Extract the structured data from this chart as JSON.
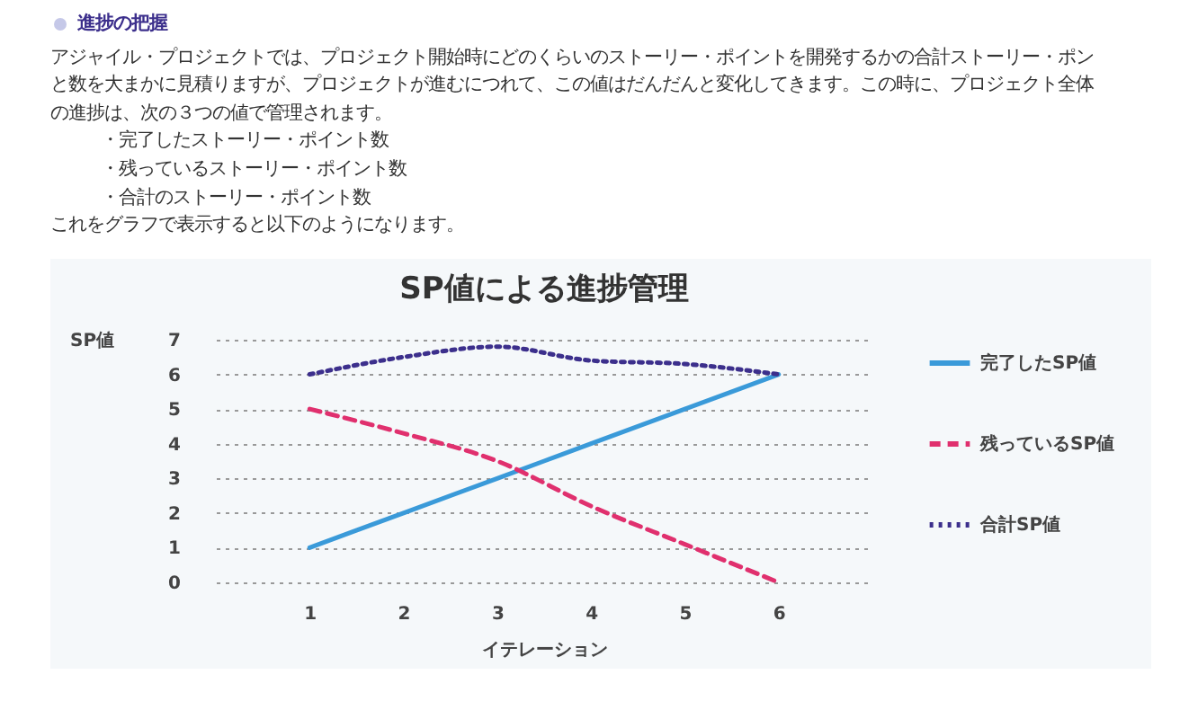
{
  "chart_data": {
    "type": "line",
    "title": "SP値による進捗管理",
    "xlabel": "イテレーション",
    "ylabel": "SP値",
    "annotations": [
      "進捗の把握",
      "アジャイル・プロジェクトでは、プロジェクト開始時にどのくらいのストーリー・ポイントを開発するかの合計ストーリー・ポン",
      "と数を大まかに見積りますが、プロジェクトが進むにつれて、この値はだんだんと変化してきます。この時に、プロジェクト全体",
      "の進捗は、次の３つの値で管理されます。",
      "・完了したストーリー・ポイント数",
      "・残っているストーリー・ポイント数",
      "・合計のストーリー・ポイント数",
      "これをグラフで表示すると以下のようになります。"
    ],
    "categories": [
      "1",
      "2",
      "3",
      "4",
      "5",
      "6"
    ],
    "series": [
      {
        "name": "完了したSP値",
        "color": "#3a9ad9",
        "line_style": "solid",
        "values": [
          1,
          2,
          3,
          4,
          5,
          6
        ]
      },
      {
        "name": "残っているSP値",
        "color": "#e0306e",
        "line_style": "dashed",
        "values": [
          5,
          4.3,
          3.5,
          2.2,
          1.1,
          0
        ]
      },
      {
        "name": "合計SP値",
        "color": "#3c2f8c",
        "line_style": "dotted",
        "values": [
          6,
          6.5,
          6.8,
          6.4,
          6.3,
          6
        ]
      }
    ],
    "ylim": [
      0,
      7
    ],
    "yticks": [
      0,
      1,
      2,
      3,
      4,
      5,
      6,
      7
    ],
    "grid": "y",
    "legend": "right",
    "marker": "none"
  }
}
